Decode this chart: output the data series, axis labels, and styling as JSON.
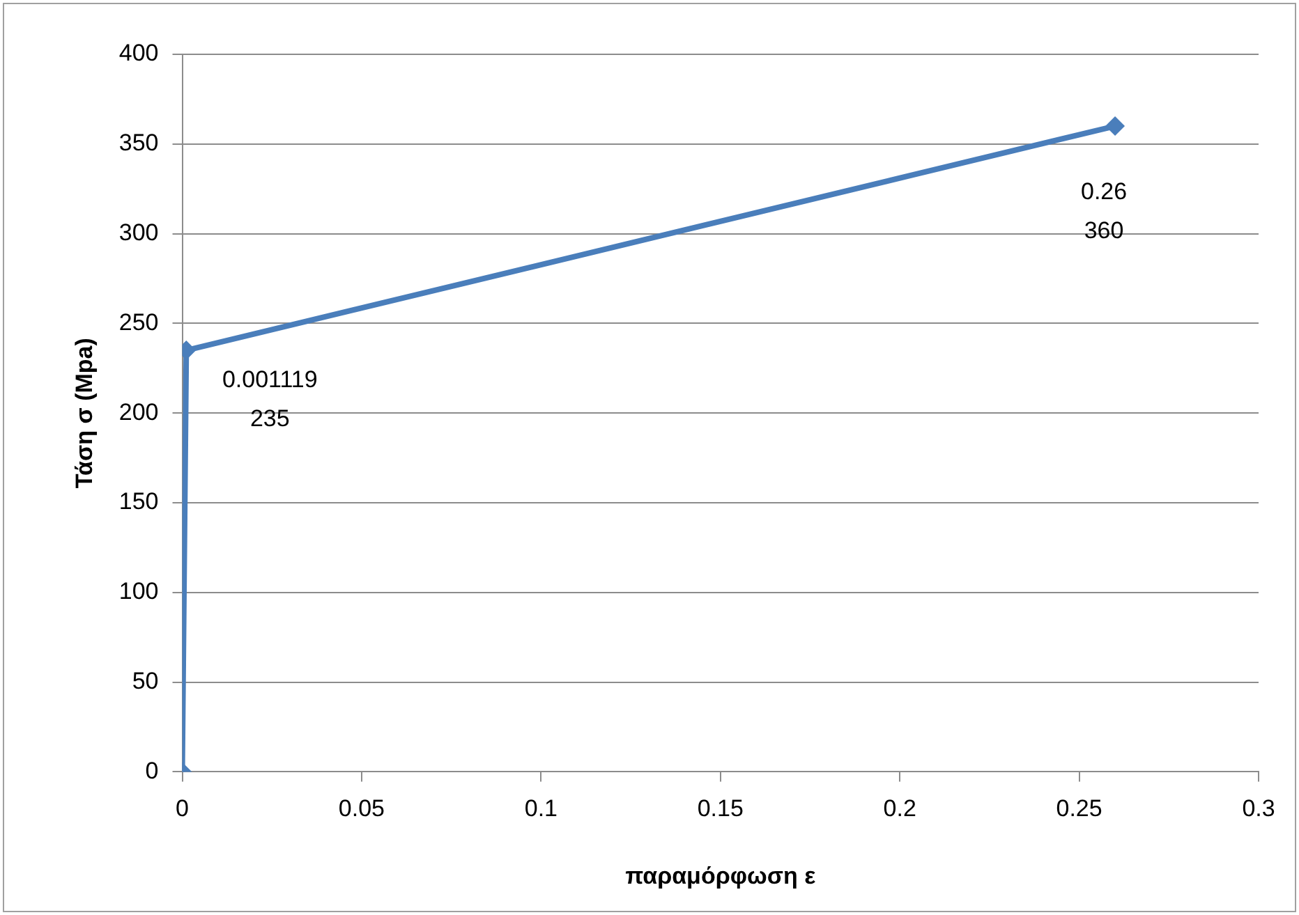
{
  "chart_data": {
    "type": "line",
    "xlabel": "παραμόρφωση ε",
    "ylabel": "Τάση σ (Mpa)",
    "x": [
      0,
      0.001119,
      0.26
    ],
    "series": [
      {
        "color": "#4a7ebb",
        "values": [
          0,
          235,
          360
        ]
      }
    ],
    "annotations": [
      {
        "text": "0.001119\n235",
        "x": 0.001119,
        "y": 235
      },
      {
        "text": "0.26\n360",
        "x": 0.26,
        "y": 360
      }
    ],
    "xlim": [
      0,
      0.3
    ],
    "xticks": [
      0,
      0.05,
      0.1,
      0.15,
      0.2,
      0.25,
      0.3
    ],
    "ylim": [
      0,
      400
    ],
    "yticks": [
      0,
      50,
      100,
      150,
      200,
      250,
      300,
      350,
      400
    ],
    "grid": "y",
    "legend": false,
    "marker": "diamond",
    "line_style": "solid"
  }
}
